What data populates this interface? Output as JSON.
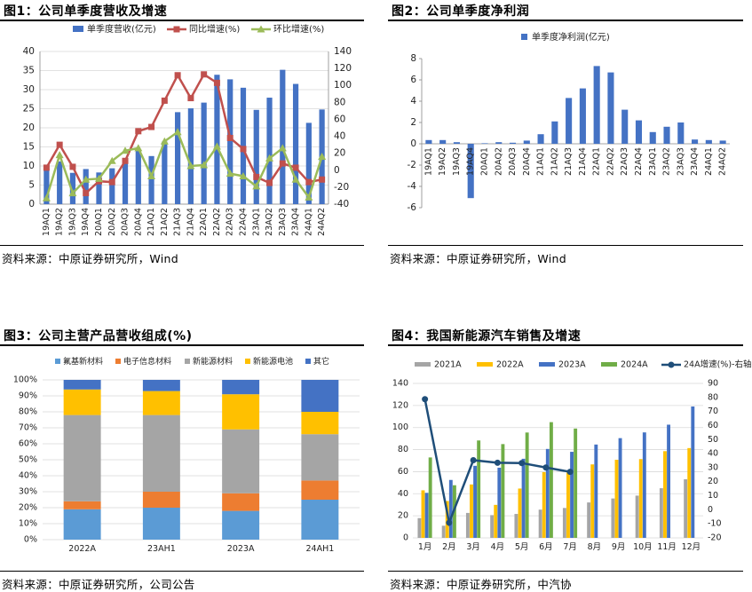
{
  "panels": [
    {
      "title": "图1：公司单季度营收及增速",
      "source": "资料来源：中原证券研究所，Wind"
    },
    {
      "title": "图2：公司单季度净利润",
      "source": "资料来源：中原证券研究所，Wind"
    },
    {
      "title": "图3：公司主营产品营收组成(%)",
      "source": "资料来源：中原证券研究所，公司公告"
    },
    {
      "title": "图4：我国新能源汽车销售及增速",
      "source": "资料来源：中原证券研究所，中汽协"
    }
  ],
  "chart_data": [
    {
      "type": "bar+line",
      "title": "图1：公司单季度营收及增速",
      "categories": [
        "19AQ1",
        "19AQ2",
        "19AQ3",
        "19AQ4",
        "20AQ1",
        "20AQ2",
        "20AQ3",
        "20AQ4",
        "21AQ1",
        "21AQ2",
        "21AQ3",
        "21AQ4",
        "22AQ1",
        "22AQ2",
        "22AQ3",
        "22AQ4",
        "23AQ1",
        "23AQ2",
        "23AQ3",
        "23AQ4",
        "24AQ1",
        "24AQ2"
      ],
      "ylim_left": [
        0,
        40
      ],
      "ylim_right": [
        -40,
        140
      ],
      "yticks_left": [
        0,
        5,
        10,
        15,
        20,
        25,
        30,
        35,
        40
      ],
      "yticks_right": [
        -40,
        -20,
        0,
        20,
        40,
        60,
        80,
        100,
        120,
        140
      ],
      "colors": {
        "bar": "#4472C4",
        "yoy": "#C0504D",
        "qoq": "#9BBB59"
      },
      "series": [
        {
          "name": "单季度营收(亿元)",
          "kind": "bar",
          "axis": "left",
          "values": [
            9.5,
            11.2,
            8.2,
            9.2,
            8.3,
            9.4,
            11.5,
            14.3,
            12.6,
            16.4,
            24.1,
            25.1,
            26.6,
            33.9,
            32.7,
            30.5,
            24.7,
            27.9,
            35.2,
            31.5,
            21.3,
            24.8
          ]
        },
        {
          "name": "同比增速(%)",
          "kind": "line",
          "axis": "right",
          "values": [
            3,
            30,
            4,
            -27,
            -13,
            -14,
            11,
            46,
            51,
            82,
            112,
            85,
            113,
            103,
            38,
            25,
            -8,
            -15,
            8,
            3,
            -14,
            -11
          ]
        },
        {
          "name": "环比增速(%)",
          "kind": "line",
          "axis": "right",
          "values": [
            -33,
            18,
            -27,
            -11,
            -10,
            11,
            23,
            26,
            -7,
            34,
            45,
            5,
            6,
            28,
            -4,
            -7,
            -19,
            14,
            26,
            -11,
            -32,
            16
          ]
        }
      ]
    },
    {
      "type": "bar",
      "title": "图2：公司单季度净利润",
      "categories": [
        "19AQ1",
        "19AQ2",
        "19AQ3",
        "19AQ4",
        "20AQ1",
        "20AQ2",
        "20AQ3",
        "20AQ4",
        "21AQ1",
        "21AQ2",
        "21AQ3",
        "21AQ4",
        "22AQ1",
        "22AQ2",
        "22AQ3",
        "22AQ4",
        "23AQ1",
        "23AQ2",
        "23AQ3",
        "23AQ4",
        "24AQ1",
        "24AQ2"
      ],
      "ylim": [
        -6,
        8
      ],
      "yticks": [
        -6,
        -4,
        -2,
        0,
        2,
        4,
        6,
        8
      ],
      "colors": {
        "bar": "#4472C4"
      },
      "series": [
        {
          "name": "单季度净利润(亿元)",
          "values": [
            0.35,
            0.35,
            0.15,
            -5.1,
            0.05,
            0.15,
            0.1,
            0.3,
            0.9,
            2.1,
            4.3,
            5.2,
            7.3,
            6.7,
            3.2,
            2.2,
            1.1,
            1.6,
            2.0,
            0.4,
            0.35,
            0.3
          ]
        }
      ]
    },
    {
      "type": "stacked-bar-100",
      "title": "图3：公司主营产品营收组成(%)",
      "categories": [
        "2022A",
        "23AH1",
        "2023A",
        "24AH1"
      ],
      "ylim": [
        0,
        100
      ],
      "yticks": [
        "0%",
        "10%",
        "20%",
        "30%",
        "40%",
        "50%",
        "60%",
        "70%",
        "80%",
        "90%",
        "100%"
      ],
      "series": [
        {
          "name": "氟基新材料",
          "color": "#5B9BD5",
          "values": [
            19,
            20,
            18,
            25
          ]
        },
        {
          "name": "电子信息材料",
          "color": "#ED7D31",
          "values": [
            5,
            10,
            11,
            12
          ]
        },
        {
          "name": "新能源材料",
          "color": "#A5A5A5",
          "values": [
            54,
            48,
            40,
            29
          ]
        },
        {
          "name": "新能源电池",
          "color": "#FFC000",
          "values": [
            16,
            15,
            22,
            14
          ]
        },
        {
          "name": "其它",
          "color": "#4472C4",
          "values": [
            6,
            7,
            9,
            20
          ]
        }
      ]
    },
    {
      "type": "bar+line",
      "title": "图4：我国新能源汽车销售及增速",
      "categories": [
        "1月",
        "2月",
        "3月",
        "4月",
        "5月",
        "6月",
        "7月",
        "8月",
        "9月",
        "10月",
        "11月",
        "12月"
      ],
      "ylim_left": [
        0,
        140
      ],
      "ylim_right": [
        -20,
        90
      ],
      "yticks_left": [
        0,
        20,
        40,
        60,
        80,
        100,
        120,
        140
      ],
      "yticks_right": [
        -20,
        -10,
        0,
        10,
        20,
        30,
        40,
        50,
        60,
        70,
        80,
        90
      ],
      "series": [
        {
          "name": "2021A",
          "kind": "bar",
          "axis": "left",
          "color": "#A5A5A5",
          "values": [
            17.9,
            11.0,
            22.6,
            20.6,
            21.7,
            25.6,
            27.1,
            32.1,
            35.7,
            38.3,
            45.0,
            53.1
          ]
        },
        {
          "name": "2022A",
          "kind": "bar",
          "axis": "left",
          "color": "#FFC000",
          "values": [
            43.1,
            33.4,
            48.4,
            29.9,
            44.7,
            59.6,
            59.3,
            66.6,
            70.8,
            71.4,
            78.6,
            81.4
          ]
        },
        {
          "name": "2023A",
          "kind": "bar",
          "axis": "left",
          "color": "#4472C4",
          "values": [
            40.8,
            52.5,
            65.3,
            63.6,
            71.7,
            80.6,
            78.0,
            84.6,
            90.4,
            95.6,
            102.6,
            119.1
          ]
        },
        {
          "name": "2024A",
          "kind": "bar",
          "axis": "left",
          "color": "#70AD47",
          "values": [
            72.9,
            47.7,
            88.3,
            85.0,
            95.5,
            104.9,
            99.1,
            null,
            null,
            null,
            null,
            null
          ]
        },
        {
          "name": "24A增速(%)-右轴",
          "kind": "line",
          "axis": "right",
          "color": "#1F4E79",
          "values": [
            78.8,
            -9.2,
            35.3,
            33.5,
            33.3,
            30.1,
            27.0,
            null,
            null,
            null,
            null,
            null
          ]
        }
      ]
    }
  ]
}
